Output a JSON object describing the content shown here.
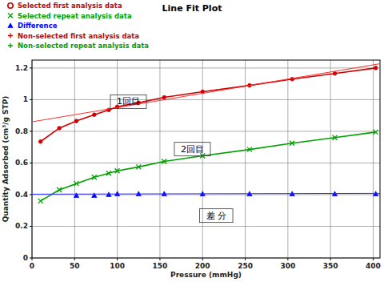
{
  "chart_data": {
    "type": "line",
    "title": "Line Fit Plot",
    "x_label": "Pressure (mmHg)",
    "y_label": "Quantity Adsorbed (cm³/g STP)",
    "xlim": [
      0,
      408
    ],
    "ylim": [
      0,
      1.25
    ],
    "xticks": [
      0,
      50,
      100,
      150,
      200,
      250,
      300,
      350,
      400
    ],
    "yticks": [
      0,
      0.2,
      0.4,
      0.6,
      0.8,
      1,
      1.2
    ],
    "grid": true,
    "legend": "top-left",
    "series": [
      {
        "name": "Selected first analysis data",
        "color": "#cc0000",
        "marker": "circle",
        "line_style": "solid",
        "x": [
          10,
          32,
          52,
          73,
          90,
          100,
          125,
          155,
          200,
          255,
          305,
          355,
          403
        ],
        "values": [
          0.735,
          0.82,
          0.865,
          0.905,
          0.935,
          0.955,
          0.98,
          1.015,
          1.05,
          1.09,
          1.13,
          1.165,
          1.2
        ]
      },
      {
        "name": "Selected repeat analysis data",
        "color": "#00a000",
        "marker": "x",
        "line_style": "solid",
        "x": [
          10,
          32,
          52,
          73,
          90,
          100,
          125,
          155,
          200,
          255,
          305,
          355,
          403
        ],
        "values": [
          0.36,
          0.43,
          0.47,
          0.51,
          0.535,
          0.55,
          0.575,
          0.61,
          0.645,
          0.685,
          0.725,
          0.76,
          0.795
        ]
      },
      {
        "name": "Difference",
        "color": "#0000ff",
        "marker": "triangle",
        "line_style": "none",
        "x": [
          52,
          73,
          90,
          100,
          125,
          155,
          200,
          255,
          305,
          355,
          403
        ],
        "values": [
          0.395,
          0.395,
          0.4,
          0.405,
          0.405,
          0.405,
          0.405,
          0.405,
          0.405,
          0.405,
          0.405
        ]
      },
      {
        "name": "Non-selected first analysis data",
        "color": "#cc0000",
        "marker": "plus",
        "line_style": "none",
        "x": [],
        "values": []
      },
      {
        "name": "Non-selected repeat analysis data",
        "color": "#00a000",
        "marker": "plus",
        "line_style": "none",
        "x": [],
        "values": []
      },
      {
        "color": "#ff3030",
        "marker": "none",
        "line_style": "solid",
        "x": [
          0,
          408
        ],
        "values": [
          0.86,
          1.227
        ]
      },
      {
        "color": "#3030ff",
        "marker": "none",
        "line_style": "solid",
        "x": [
          0,
          408
        ],
        "values": [
          0.403,
          0.408
        ]
      }
    ],
    "annotations": [
      {
        "text": "1回目",
        "x": 113,
        "y": 0.99
      },
      {
        "text": "2回目",
        "x": 188,
        "y": 0.69
      },
      {
        "text": "差 分",
        "x": 216,
        "y": 0.27
      }
    ]
  }
}
